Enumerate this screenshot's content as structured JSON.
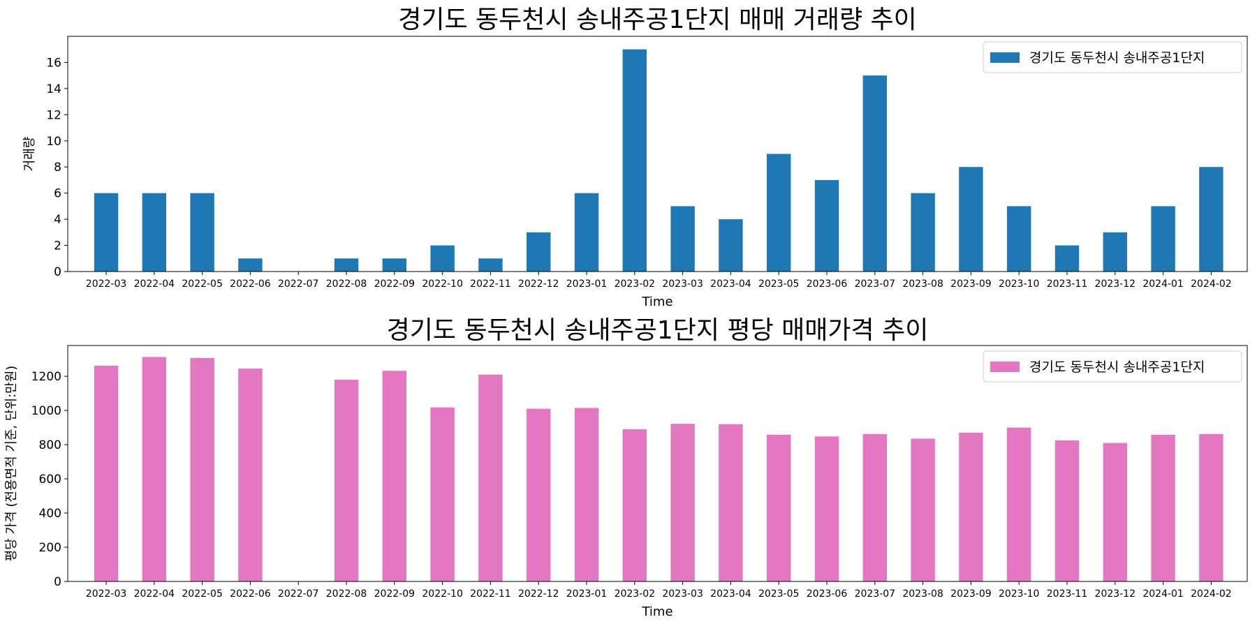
{
  "chart_data": [
    {
      "type": "bar",
      "title": "경기도 동두천시 송내주공1단지 매매 거래량 추이",
      "xlabel": "Time",
      "ylabel": "거래량",
      "ylim": [
        0,
        18
      ],
      "yticks": [
        0,
        2,
        4,
        6,
        8,
        10,
        12,
        14,
        16
      ],
      "grid": false,
      "legend_position": "top-right",
      "categories": [
        "2022-03",
        "2022-04",
        "2022-05",
        "2022-06",
        "2022-07",
        "2022-08",
        "2022-09",
        "2022-10",
        "2022-11",
        "2022-12",
        "2023-01",
        "2023-02",
        "2023-03",
        "2023-04",
        "2023-05",
        "2023-06",
        "2023-07",
        "2023-08",
        "2023-09",
        "2023-10",
        "2023-11",
        "2023-12",
        "2024-01",
        "2024-02"
      ],
      "series": [
        {
          "name": "경기도 동두천시 송내주공1단지",
          "color": "#1f77b4",
          "values": [
            6,
            6,
            6,
            1,
            0,
            1,
            1,
            2,
            1,
            3,
            6,
            17,
            5,
            4,
            9,
            7,
            15,
            6,
            8,
            5,
            2,
            3,
            5,
            8
          ]
        }
      ]
    },
    {
      "type": "bar",
      "title": "경기도 동두천시 송내주공1단지 평당 매매가격 추이",
      "xlabel": "Time",
      "ylabel": "평당 가격 (전용면적 기준, 단위:만원)",
      "ylim": [
        0,
        1380
      ],
      "yticks": [
        0,
        200,
        400,
        600,
        800,
        1000,
        1200
      ],
      "grid": false,
      "legend_position": "top-right",
      "categories": [
        "2022-03",
        "2022-04",
        "2022-05",
        "2022-06",
        "2022-07",
        "2022-08",
        "2022-09",
        "2022-10",
        "2022-11",
        "2022-12",
        "2023-01",
        "2023-02",
        "2023-03",
        "2023-04",
        "2023-05",
        "2023-06",
        "2023-07",
        "2023-08",
        "2023-09",
        "2023-10",
        "2023-11",
        "2023-12",
        "2024-01",
        "2024-02"
      ],
      "series": [
        {
          "name": "경기도 동두천시 송내주공1단지",
          "color": "#e377c2",
          "values": [
            1262,
            1313,
            1307,
            1245,
            null,
            1180,
            1232,
            1018,
            1210,
            1010,
            1015,
            890,
            922,
            920,
            858,
            848,
            862,
            835,
            870,
            900,
            825,
            810,
            858,
            862
          ]
        }
      ]
    }
  ]
}
